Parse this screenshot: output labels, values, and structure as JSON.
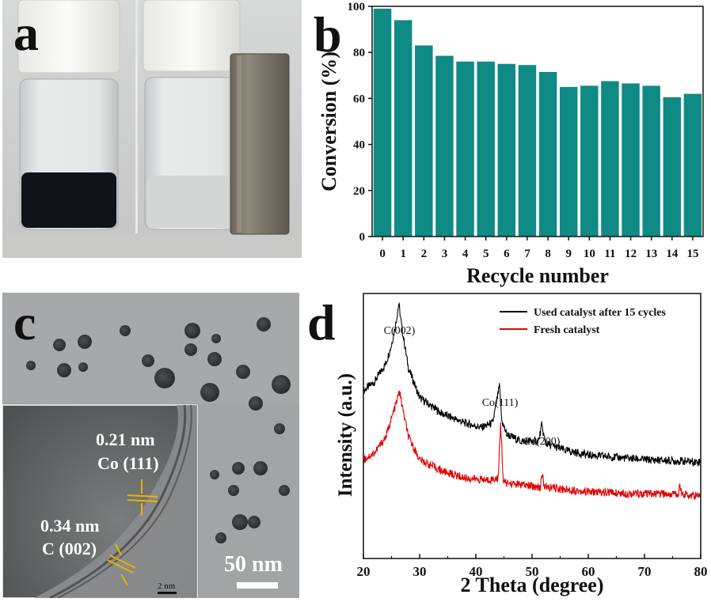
{
  "panels": {
    "a": {
      "letter": "a"
    },
    "b": {
      "letter": "b"
    },
    "c": {
      "letter": "c",
      "scale_bar": "50 nm",
      "inset_scale_bar": "2 nm",
      "annotations": [
        {
          "value": "0.21 nm",
          "label": "Co (111)"
        },
        {
          "value": "0.34 nm",
          "label": "C (002)"
        }
      ]
    },
    "d": {
      "letter": "d"
    }
  },
  "colors": {
    "bar": "#0f8a85",
    "used_line": "#000000",
    "fresh_line": "#e00000"
  },
  "chart_data": [
    {
      "type": "bar",
      "title": "",
      "xlabel": "Recycle number",
      "ylabel": "Conversion (%)",
      "categories": [
        "0",
        "1",
        "2",
        "3",
        "4",
        "5",
        "6",
        "7",
        "8",
        "9",
        "10",
        "11",
        "12",
        "13",
        "14",
        "15"
      ],
      "values": [
        99,
        94,
        83,
        78.5,
        76,
        76,
        75,
        74.5,
        71.5,
        65,
        65.5,
        67.5,
        66.5,
        65.5,
        60.5,
        62
      ],
      "ylim": [
        0,
        100
      ],
      "yticks": [
        0,
        20,
        40,
        60,
        80,
        100
      ]
    },
    {
      "type": "line",
      "title": "",
      "xlabel": "2 Theta (degree)",
      "ylabel": "Intensity (a.u.)",
      "xlim": [
        20,
        80
      ],
      "xticks": [
        20,
        30,
        40,
        50,
        60,
        70,
        80
      ],
      "legend_position": "top-right",
      "series": [
        {
          "name": "Used catalyst after 15 cycles",
          "color": "#000000",
          "x": [
            20,
            22,
            24,
            25,
            25.8,
            26.3,
            26.8,
            28,
            30,
            34,
            38,
            41,
            43,
            44.2,
            44.6,
            45.5,
            48,
            51.2,
            51.7,
            52.4,
            56,
            60,
            70,
            80
          ],
          "y": [
            0.8,
            0.84,
            0.92,
            1.0,
            1.1,
            1.18,
            1.08,
            0.9,
            0.77,
            0.7,
            0.66,
            0.64,
            0.66,
            0.82,
            0.67,
            0.61,
            0.58,
            0.58,
            0.65,
            0.57,
            0.54,
            0.52,
            0.5,
            0.49
          ]
        },
        {
          "name": "Fresh catalyst",
          "color": "#e00000",
          "x": [
            20,
            22,
            24,
            25,
            26,
            26.4,
            27,
            28,
            30,
            34,
            38,
            42,
            44,
            44.4,
            44.9,
            48,
            51.5,
            51.8,
            52.2,
            56,
            60,
            70,
            76,
            76.3,
            76.6,
            80
          ],
          "y": [
            0.5,
            0.53,
            0.6,
            0.68,
            0.76,
            0.8,
            0.72,
            0.6,
            0.5,
            0.45,
            0.42,
            0.41,
            0.42,
            0.66,
            0.4,
            0.39,
            0.38,
            0.44,
            0.38,
            0.37,
            0.36,
            0.35,
            0.35,
            0.39,
            0.35,
            0.34
          ]
        }
      ],
      "annotations": [
        "C(002)",
        "Co(111)",
        "Co(200)"
      ]
    }
  ]
}
